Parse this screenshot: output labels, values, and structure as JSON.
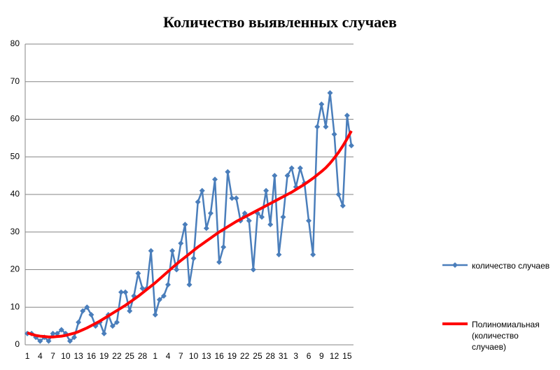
{
  "chart_data": {
    "type": "line",
    "title": "Количество выявленных случаев",
    "categories": [
      "1",
      null,
      null,
      "4",
      null,
      null,
      "7",
      null,
      null,
      "10",
      null,
      null,
      "13",
      null,
      null,
      "16",
      null,
      null,
      "19",
      null,
      null,
      "22",
      null,
      null,
      "25",
      null,
      null,
      "28",
      null,
      null,
      "1",
      null,
      null,
      "4",
      null,
      null,
      "7",
      null,
      null,
      "10",
      null,
      null,
      "13",
      null,
      null,
      "16",
      null,
      null,
      "19",
      null,
      null,
      "22",
      null,
      null,
      "25",
      null,
      null,
      "28",
      null,
      null,
      "31",
      null,
      null,
      "3",
      null,
      null,
      "6",
      null,
      null,
      "9",
      null,
      null,
      "12",
      null,
      null,
      "15",
      null
    ],
    "series": [
      {
        "name": "количество случаев",
        "color": "#4a7ebb",
        "marker": "diamond",
        "values": [
          3,
          3,
          2,
          1,
          2,
          1,
          3,
          3,
          4,
          3,
          1,
          2,
          6,
          9,
          10,
          8,
          5,
          6,
          3,
          8,
          5,
          6,
          14,
          14,
          9,
          13,
          19,
          15,
          15,
          25,
          8,
          12,
          13,
          16,
          25,
          20,
          27,
          32,
          16,
          23,
          38,
          41,
          31,
          35,
          44,
          22,
          26,
          46,
          39,
          39,
          33,
          35,
          33,
          20,
          35,
          34,
          41,
          32,
          45,
          24,
          34,
          45,
          47,
          42,
          47,
          43,
          33,
          24,
          58,
          64,
          58,
          67,
          56,
          40,
          37,
          61,
          53
        ]
      },
      {
        "name": "Полиномиальная (количество случаев)",
        "color": "#ff0000",
        "values": [
          3.2,
          2.8,
          2.5,
          2.3,
          2.2,
          2.1,
          2.1,
          2.2,
          2.3,
          2.5,
          2.8,
          3.1,
          3.5,
          4.0,
          4.5,
          5.1,
          5.7,
          6.3,
          7.0,
          7.7,
          8.4,
          9.1,
          9.8,
          10.5,
          11.3,
          12.1,
          12.9,
          13.8,
          14.7,
          15.6,
          16.5,
          17.5,
          18.5,
          19.5,
          20.5,
          21.5,
          22.4,
          23.3,
          24.2,
          25.1,
          26.0,
          26.8,
          27.6,
          28.4,
          29.2,
          30.0,
          30.7,
          31.4,
          32.1,
          32.8,
          33.4,
          34.0,
          34.6,
          35.2,
          35.8,
          36.4,
          37.0,
          37.6,
          38.2,
          38.8,
          39.4,
          40.0,
          40.6,
          41.3,
          42.0,
          42.7,
          43.5,
          44.3,
          45.2,
          46.1,
          47.1,
          48.3,
          49.7,
          51.2,
          52.9,
          54.8,
          56.9
        ]
      }
    ],
    "ylim": [
      0,
      80
    ],
    "yticks": [
      0,
      10,
      20,
      30,
      40,
      50,
      60,
      70,
      80
    ],
    "grid": true
  }
}
